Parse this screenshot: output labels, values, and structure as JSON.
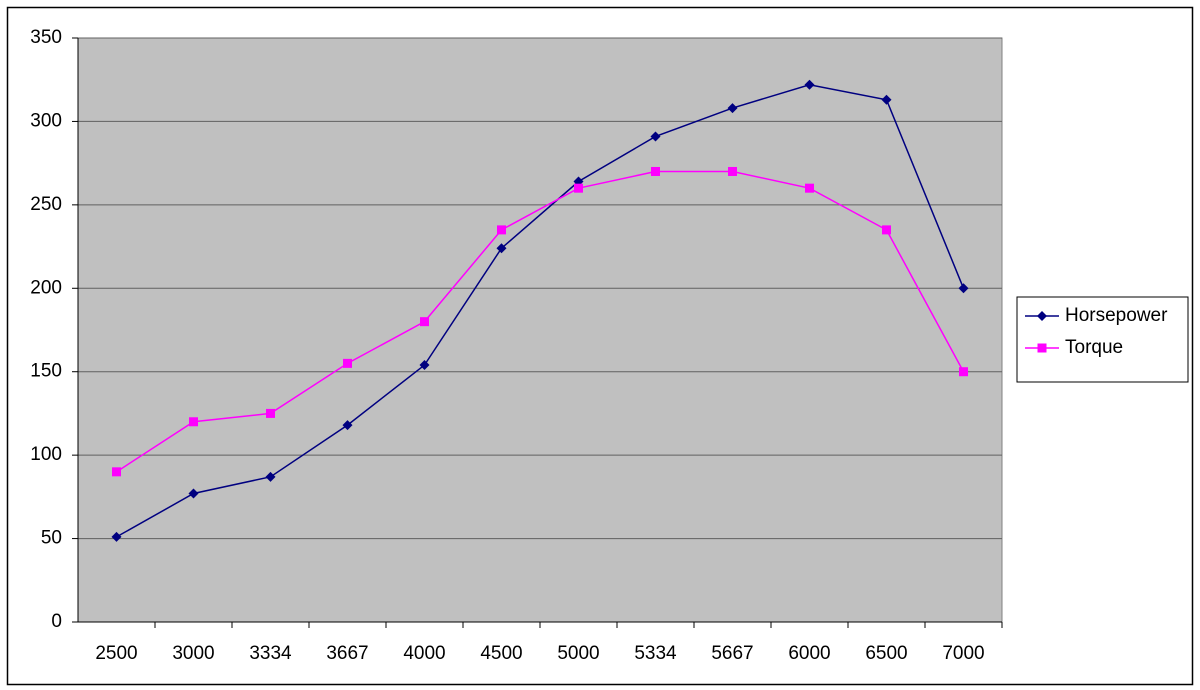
{
  "chart_data": {
    "type": "line",
    "categories": [
      "2500",
      "3000",
      "3334",
      "3667",
      "4000",
      "4500",
      "5000",
      "5334",
      "5667",
      "6000",
      "6500",
      "7000"
    ],
    "series": [
      {
        "name": "Horsepower",
        "color": "#000080",
        "marker": "diamond",
        "values": [
          51,
          77,
          87,
          118,
          154,
          224,
          264,
          291,
          308,
          322,
          313,
          200
        ]
      },
      {
        "name": "Torque",
        "color": "#ff00ff",
        "marker": "square",
        "values": [
          90,
          120,
          125,
          155,
          180,
          235,
          260,
          270,
          270,
          260,
          235,
          150
        ]
      }
    ],
    "ylim": [
      0,
      350
    ],
    "yticks": [
      0,
      50,
      100,
      150,
      200,
      250,
      300,
      350
    ],
    "grid": true,
    "legend": "right",
    "plot_background": "#c0c0c0"
  }
}
